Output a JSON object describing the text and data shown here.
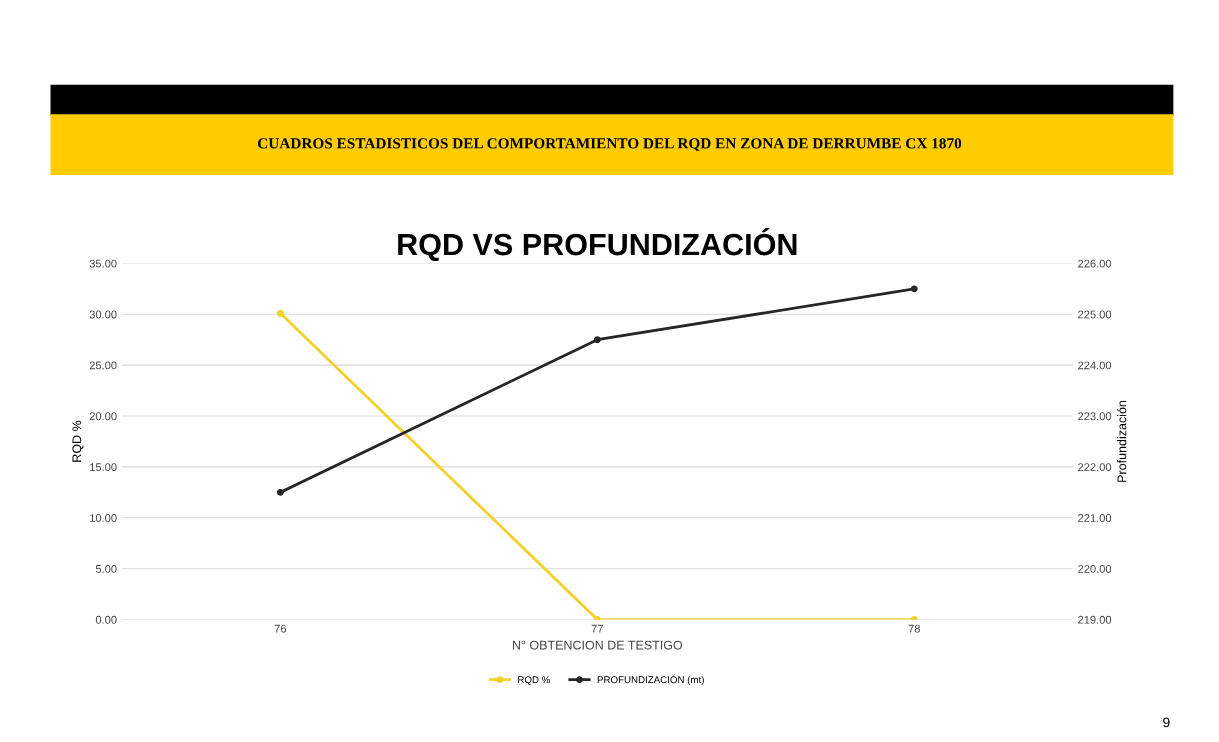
{
  "chart_data": {
    "type": "line",
    "title": "RQD VS PROFUNDIZACIÓN",
    "subtitle": "CUADROS ESTADISTICOS DEL COMPORTAMIENTO DEL RQD EN ZONA DE DERRUMBE CX 1870",
    "xlabel": "N° OBTENCION DE TESTIGO",
    "ylabel": "RQD %",
    "y2label": "Profundización",
    "categories": [
      "76",
      "77",
      "78"
    ],
    "series": [
      {
        "name": "RQD %",
        "color": "#f5cf2a",
        "values": [
          30.1,
          0,
          0
        ]
      },
      {
        "name": "PROFUNDIZACIÓN (mt)",
        "color": "#262626",
        "values": [
          221.5,
          224.5,
          225.5
        ],
        "axis": "y2"
      }
    ],
    "ylim": [
      0,
      35
    ],
    "yticks": [
      {
        "value": 0,
        "label": "0.00"
      },
      {
        "value": 5,
        "label": "5.00"
      },
      {
        "value": 10,
        "label": "10.00"
      },
      {
        "value": 15,
        "label": "15.00"
      },
      {
        "value": 20,
        "label": "20.00"
      },
      {
        "value": 25,
        "label": "25.00"
      },
      {
        "value": 30,
        "label": "30.00"
      },
      {
        "value": 35,
        "label": "35.00"
      }
    ],
    "y2lim": [
      219,
      226
    ],
    "y2ticks": [
      {
        "value": 219,
        "label": "219.00"
      },
      {
        "value": 220,
        "label": "220.00"
      },
      {
        "value": 221,
        "label": "221.00"
      },
      {
        "value": 222,
        "label": "222.00"
      },
      {
        "value": 223,
        "label": "223.00"
      },
      {
        "value": 224,
        "label": "224.00"
      },
      {
        "value": 225,
        "label": "225.00"
      },
      {
        "value": 226,
        "label": "226.00"
      }
    ],
    "annotations": [
      "9"
    ],
    "grid": "y",
    "legend": "bottom",
    "marker": "circle",
    "line_style": "solid"
  }
}
